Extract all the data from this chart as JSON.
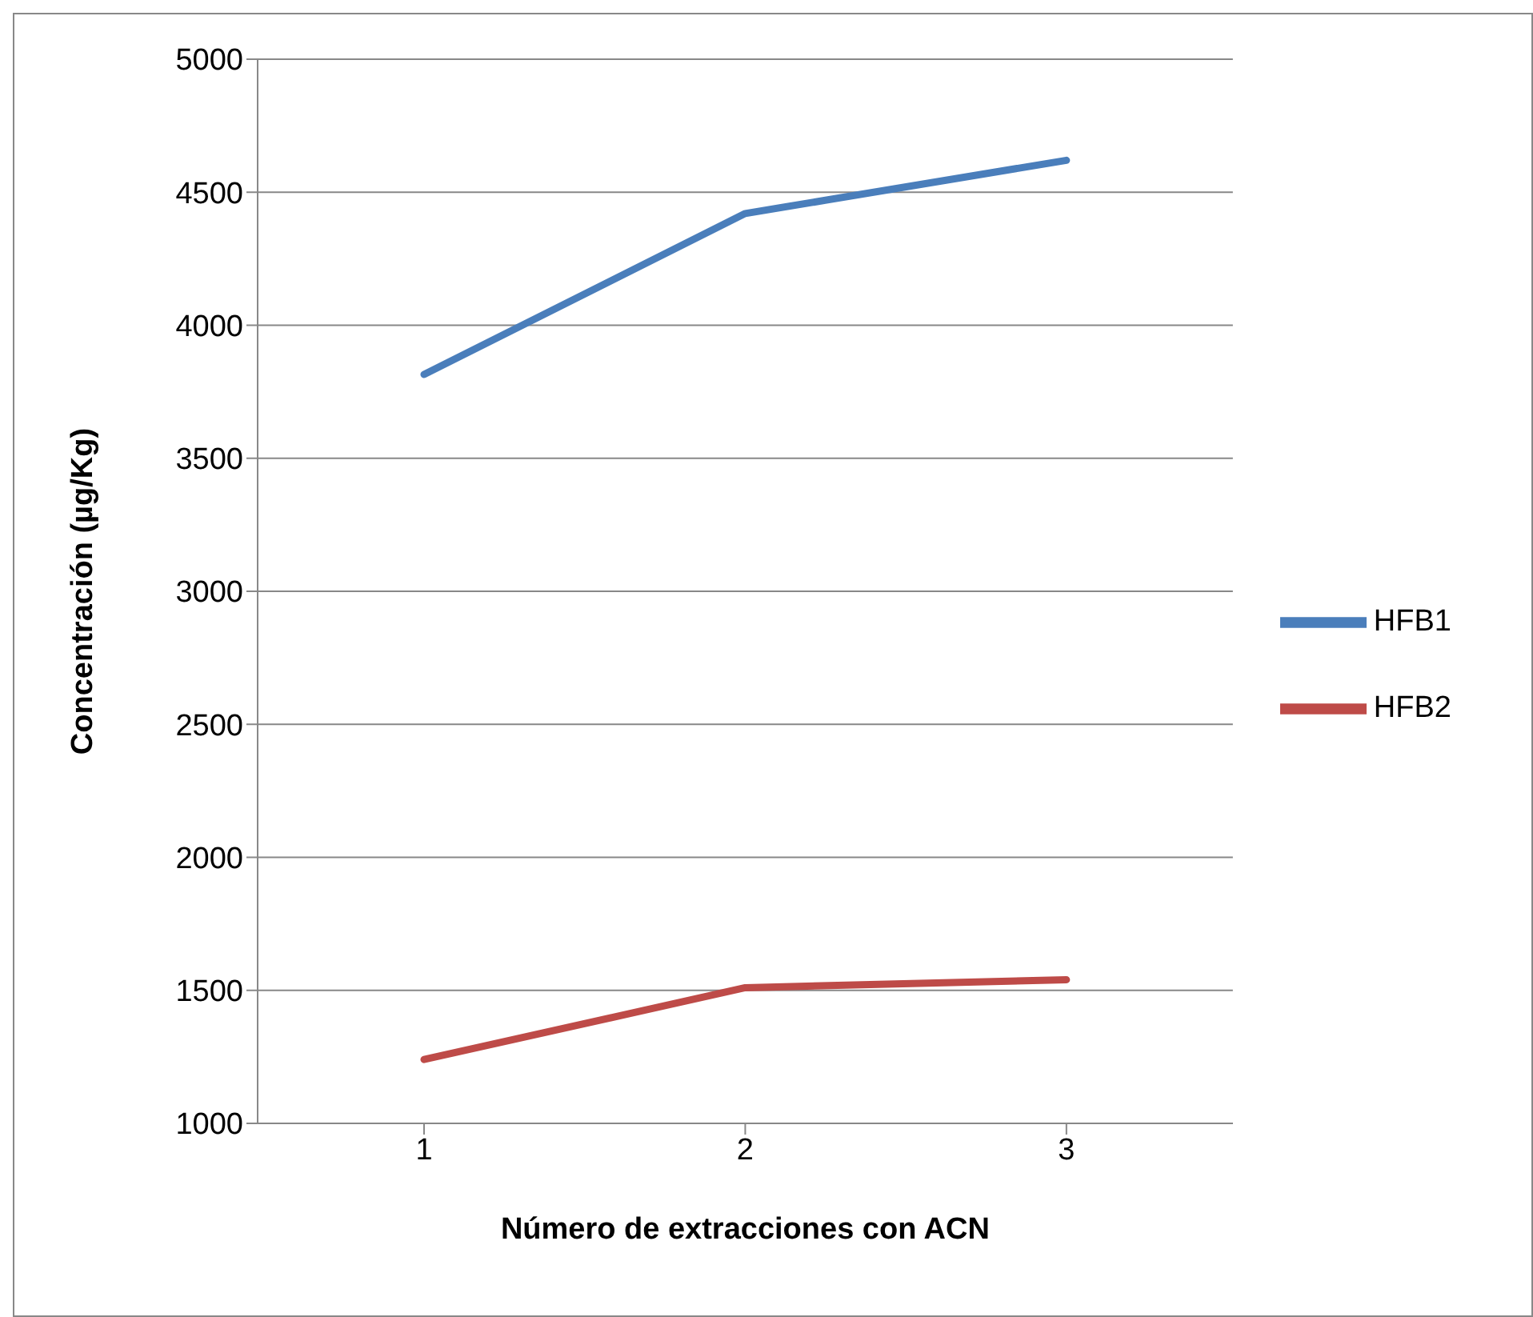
{
  "chart_data": {
    "type": "line",
    "xlabel": "Número de extracciones con ACN",
    "ylabel": "Concentración (µg/Kg)",
    "categories": [
      "1",
      "2",
      "3"
    ],
    "series": [
      {
        "name": "HFB1",
        "color": "#4a7ebb",
        "values": [
          3815,
          4420,
          4620
        ]
      },
      {
        "name": "HFB2",
        "color": "#be4b48",
        "values": [
          1240,
          1510,
          1540
        ]
      }
    ],
    "ylim": [
      1000,
      5000
    ],
    "yticks": [
      1000,
      1500,
      2000,
      2500,
      3000,
      3500,
      4000,
      4500,
      5000
    ],
    "grid": "y",
    "legend": "right",
    "marker": "none",
    "line_style": "solid"
  }
}
